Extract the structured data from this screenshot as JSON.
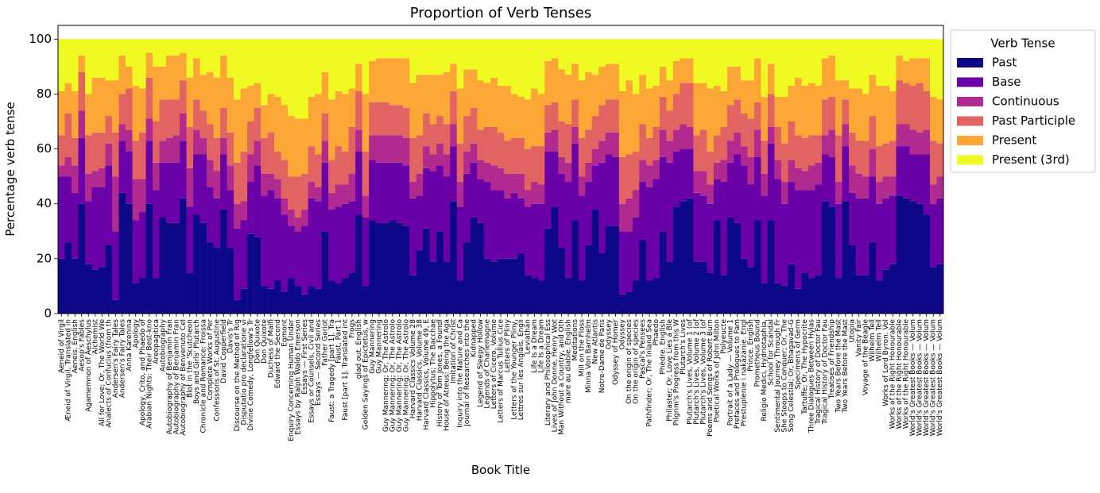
{
  "chart_data": {
    "type": "stacked_bar",
    "title": "Proportion of Verb Tenses",
    "x_label": "Book Title",
    "y_label": "Percentage verb tense",
    "legend_title": "Verb Tense",
    "legend": "upper right outside",
    "ylim": [
      0,
      105
    ],
    "yticks": [
      0,
      20,
      40,
      60,
      80,
      100
    ],
    "categories": [
      "Aeneid of Virgil",
      "Æneid of Virgil, Translated in",
      "Aeneis. English",
      "Aesop's Fables",
      "Agamemnon of Aeschylus",
      "Alchemist",
      "All for Love; Or, The World We",
      "Analects of Confucius (from th",
      "Andersen's Fairy Tales",
      "Andersen's Fairy Tales",
      "Anna Karenina",
      "Apology",
      "Apology, Crito, and Phaedo of",
      "Arabian Nights: Their Best-kno",
      "Areopagitica",
      "Autobiography",
      "Autobiography of Benjamin Fran",
      "Autobiography of Benjamin Fran",
      "Autobiography of Benvenuto Cel",
      "Blot in the 'Scutcheon",
      "Boys and Girls' Plutarch",
      "Chronicle and Romance: Froissa",
      "Complete Works of Per",
      "Confessions of St. Augustine",
      "David Copperfield",
      "Davis's Tr",
      "Discourse on the Method of Rig",
      "Disputatio pro declaratione vi",
      "Divine Comedy, Longfellow's Tr",
      "Don Quixote",
      "Don Quixote",
      "Duchess of Malfi",
      "Edward the Second",
      "Egmont",
      "Enquiry Concerning Human Under",
      "Essays by Ralph Waldo Emerson",
      "Essays — First Series",
      "Essays or Counsels, Civil and",
      "Essays — Second Series",
      "Father Goriot",
      "Faust: a Tragedy [part 1]. Tra",
      "Faust, Part 1",
      "Faust [part 1]. Translated int",
      "Frogs",
      "glad out. English",
      "Golden Sayings of Epictetus, w",
      "Guy Mannering",
      "Guy Mannering",
      "Guy Mannering; Or, The Astrolo",
      "Guy Mannering; Or, The Astrolo",
      "Guy Mannering; Or, The Astrolo",
      "Guy Mannering; Or, The Astrolo",
      "Harvard Classics Volume 28",
      "Harvard Classics, Volume 38",
      "Harvard Classics, Volume 49, E",
      "Hippolytus; The Bacchae",
      "History of Tom Jones, a Foundl",
      "House of Atreus: Being the Aga",
      "Imitation of Christ",
      "Inquiry into the Nature and Ca",
      "Journal of Researches into the",
      "Kidnapped",
      "Legend of Sleepy Hollow",
      "Legends of Charlemagne",
      "Letters of Cicero, Volume",
      "Letters of Marcus Tullius Cice",
      "Letters of Pliny",
      "Letters of the Younger Pliny,",
      "Lettres sur les Anglais. Engli",
      "Leviathan",
      "Life Is a Dream",
      "Life Is a Dream",
      "Literary and Philosophical Ess",
      "Lives of John Donne, Henry Wot",
      "Man Without a Country, and Oth",
      "mare au diable. English",
      "Meditations",
      "Mill on the Floss",
      "Minna Von Barnhelm",
      "New Atlantis",
      "Notre-Dame de Paris",
      "Odyssey",
      "Odyssey of Homer",
      "Odyssey",
      "On the origin of species",
      "On the origin of species",
      "Pascal's Pensees",
      "Pathfinder; Or, The Inland Sea",
      "Phaedo",
      "Phèdre. English",
      "Philaster; Or, Love Lies a Ble",
      "Pilgrim's Progress from this W",
      "Plutarch's Lives",
      "Plutarch's Lives, Volume 1 (of",
      "Plutarch's Lives, Volume 2 (of",
      "Plutarch's Lives, Volume 3 (of",
      "Poems and Songs of Robert Burn",
      "Poetical Works of John Milton",
      "Polyeucte",
      "Portrait of a Lady — Volume 1",
      "Prefaces and Prologues to Fam",
      "Prestuplenie i nakazanie. Engl",
      "Prince. English",
      "Prometheus Bound",
      "Religio Medici, Hydriotaphia,",
      "School for Scandal",
      "Sentimental Journey Through Fr",
      "She Stoops to Conquer; Or, The",
      "Song Celestial; Or, Bhagavad-G",
      "Specimens of Germ",
      "Tartuffe; Or, The Hypocrite",
      "Three Dialogues Between Hylas",
      "Tragical History of Doctor Fau",
      "Tragical History of Doctor Fau",
      "Treatises of Friendship",
      "Two Years Before the Mast",
      "Two Years Before the Mast",
      "Utopia",
      "Vanity Fair",
      "Voyage of the Beagle",
      "Wilhelm Tell",
      "Wilhelm Tell",
      "Works of Lord Byron. Vol",
      "Works of the Right Honourable",
      "Works of the Right Honourable",
      "Works of the Right Honourable",
      "World's Greatest Books — Volum",
      "World's Greatest Books — Volum",
      "World's Greatest Books — Volum",
      "World's Greatest Books — Volum",
      "World's Greatest Books — Volum"
    ],
    "series": [
      {
        "name": "Past",
        "color": "#0d0887",
        "values": [
          20,
          26,
          20,
          40,
          18,
          16,
          17,
          25,
          5,
          44,
          40,
          11,
          13,
          40,
          13,
          35,
          33,
          33,
          42,
          15,
          36,
          33,
          26,
          24,
          38,
          24,
          5,
          9,
          29,
          28,
          10,
          9,
          12,
          8,
          13,
          10,
          7,
          10,
          9,
          30,
          12,
          11,
          13,
          15,
          36,
          10,
          34,
          33,
          33,
          34,
          33,
          32,
          14,
          23,
          31,
          19,
          30,
          19,
          41,
          12,
          26,
          35,
          33,
          20,
          19,
          20,
          20,
          20,
          22,
          14,
          13,
          12,
          31,
          39,
          24,
          13,
          34,
          12,
          25,
          38,
          22,
          32,
          32,
          7,
          8,
          12,
          27,
          12,
          13,
          30,
          19,
          39,
          41,
          42,
          19,
          19,
          15,
          34,
          14,
          35,
          33,
          20,
          17,
          34,
          11,
          34,
          11,
          10,
          18,
          9,
          15,
          13,
          14,
          41,
          39,
          13,
          41,
          25,
          14,
          14,
          26,
          12,
          16,
          18,
          43,
          42,
          41,
          40,
          36,
          17,
          18
        ]
      },
      {
        "name": "Base",
        "color": "#6a00a8",
        "values": [
          30,
          24,
          24,
          24,
          23,
          30,
          29,
          29,
          25,
          19,
          19,
          23,
          24,
          23,
          32,
          20,
          22,
          22,
          21,
          24,
          22,
          25,
          20,
          18,
          20,
          21,
          26,
          25,
          19,
          26,
          33,
          36,
          30,
          28,
          19,
          20,
          25,
          32,
          32,
          25,
          26,
          28,
          27,
          26,
          23,
          25,
          22,
          22,
          22,
          21,
          22,
          22,
          28,
          20,
          22,
          33,
          24,
          31,
          20,
          27,
          25,
          20,
          16,
          28,
          26,
          25,
          22,
          24,
          20,
          25,
          27,
          28,
          28,
          20,
          27,
          35,
          28,
          31,
          23,
          16,
          33,
          26,
          25,
          23,
          22,
          23,
          21,
          34,
          36,
          27,
          36,
          20,
          19,
          18,
          25,
          24,
          25,
          15,
          34,
          20,
          25,
          34,
          30,
          23,
          32,
          28,
          38,
          30,
          30,
          36,
          30,
          32,
          33,
          17,
          18,
          27,
          20,
          19,
          28,
          28,
          24,
          28,
          26,
          25,
          18,
          19,
          17,
          18,
          22,
          23,
          24
        ]
      },
      {
        "name": "Continuous",
        "color": "#b12a90",
        "values": [
          4,
          7,
          10,
          10,
          10,
          6,
          7,
          8,
          20,
          6,
          8,
          15,
          12,
          8,
          10,
          8,
          9,
          10,
          10,
          14,
          9,
          6,
          10,
          10,
          6,
          9,
          9,
          7,
          10,
          9,
          8,
          6,
          7,
          6,
          6,
          5,
          6,
          6,
          5,
          8,
          6,
          8,
          7,
          10,
          8,
          8,
          9,
          10,
          10,
          10,
          10,
          10,
          6,
          8,
          8,
          6,
          8,
          8,
          8,
          9,
          8,
          7,
          7,
          7,
          9,
          8,
          9,
          7,
          9,
          6,
          8,
          7,
          7,
          8,
          6,
          7,
          6,
          7,
          7,
          6,
          8,
          8,
          9,
          10,
          12,
          10,
          8,
          8,
          7,
          10,
          8,
          8,
          9,
          8,
          8,
          9,
          7,
          6,
          8,
          8,
          8,
          7,
          10,
          10,
          8,
          6,
          7,
          8,
          8,
          8,
          7,
          9,
          8,
          7,
          10,
          8,
          8,
          10,
          9,
          8,
          10,
          8,
          8,
          7,
          8,
          8,
          9,
          8,
          9,
          7,
          8
        ]
      },
      {
        "name": "Past Participle",
        "color": "#e16462",
        "values": [
          11,
          16,
          10,
          14,
          14,
          14,
          13,
          10,
          16,
          11,
          15,
          14,
          17,
          15,
          15,
          15,
          14,
          13,
          12,
          15,
          11,
          10,
          13,
          12,
          11,
          12,
          15,
          18,
          12,
          12,
          13,
          15,
          10,
          14,
          12,
          15,
          13,
          13,
          12,
          10,
          12,
          14,
          12,
          17,
          14,
          16,
          12,
          12,
          12,
          11,
          11,
          11,
          16,
          14,
          12,
          11,
          10,
          11,
          12,
          14,
          13,
          13,
          11,
          13,
          14,
          13,
          12,
          13,
          13,
          15,
          13,
          14,
          10,
          10,
          13,
          14,
          10,
          14,
          12,
          12,
          13,
          12,
          12,
          17,
          16,
          14,
          13,
          10,
          12,
          12,
          11,
          13,
          15,
          16,
          13,
          15,
          12,
          10,
          12,
          13,
          12,
          12,
          14,
          10,
          12,
          12,
          12,
          14,
          14,
          12,
          12,
          11,
          10,
          13,
          12,
          17,
          9,
          12,
          12,
          13,
          12,
          13,
          12,
          13,
          16,
          15,
          16,
          18,
          14,
          16,
          12
        ]
      },
      {
        "name": "Present",
        "color": "#fca636",
        "values": [
          16,
          11,
          17,
          6,
          15,
          20,
          20,
          13,
          19,
          14,
          8,
          20,
          16,
          9,
          20,
          12,
          16,
          16,
          10,
          18,
          15,
          13,
          19,
          22,
          19,
          20,
          23,
          23,
          13,
          9,
          12,
          14,
          20,
          20,
          22,
          21,
          20,
          18,
          22,
          15,
          22,
          20,
          21,
          14,
          10,
          21,
          15,
          16,
          16,
          17,
          17,
          18,
          20,
          22,
          14,
          18,
          15,
          19,
          10,
          20,
          17,
          14,
          18,
          16,
          18,
          17,
          20,
          16,
          15,
          18,
          21,
          19,
          16,
          16,
          19,
          18,
          13,
          21,
          21,
          15,
          14,
          13,
          13,
          24,
          27,
          21,
          18,
          18,
          15,
          11,
          11,
          12,
          9,
          9,
          19,
          17,
          23,
          18,
          13,
          14,
          12,
          12,
          14,
          16,
          16,
          11,
          11,
          17,
          13,
          21,
          19,
          19,
          18,
          15,
          15,
          20,
          7,
          16,
          19,
          17,
          15,
          22,
          21,
          18,
          9,
          8,
          10,
          9,
          12,
          16,
          16
        ]
      },
      {
        "name": "Present (3rd)",
        "color": "#f0f921",
        "values": [
          19,
          16,
          19,
          6,
          20,
          14,
          14,
          15,
          15,
          6,
          10,
          17,
          18,
          5,
          10,
          10,
          6,
          6,
          5,
          14,
          7,
          13,
          12,
          14,
          6,
          14,
          22,
          18,
          17,
          16,
          24,
          20,
          21,
          24,
          28,
          29,
          29,
          21,
          20,
          12,
          22,
          19,
          20,
          18,
          9,
          20,
          8,
          7,
          7,
          7,
          7,
          7,
          16,
          13,
          13,
          13,
          13,
          12,
          9,
          18,
          11,
          11,
          15,
          16,
          14,
          17,
          17,
          20,
          21,
          22,
          18,
          20,
          8,
          7,
          11,
          13,
          9,
          15,
          12,
          13,
          10,
          9,
          9,
          19,
          15,
          20,
          13,
          18,
          17,
          10,
          15,
          8,
          7,
          7,
          16,
          16,
          18,
          17,
          19,
          10,
          10,
          15,
          15,
          7,
          21,
          9,
          21,
          21,
          17,
          14,
          17,
          16,
          17,
          7,
          6,
          15,
          15,
          18,
          18,
          20,
          13,
          17,
          17,
          19,
          6,
          8,
          7,
          7,
          7,
          21,
          22
        ]
      }
    ]
  }
}
